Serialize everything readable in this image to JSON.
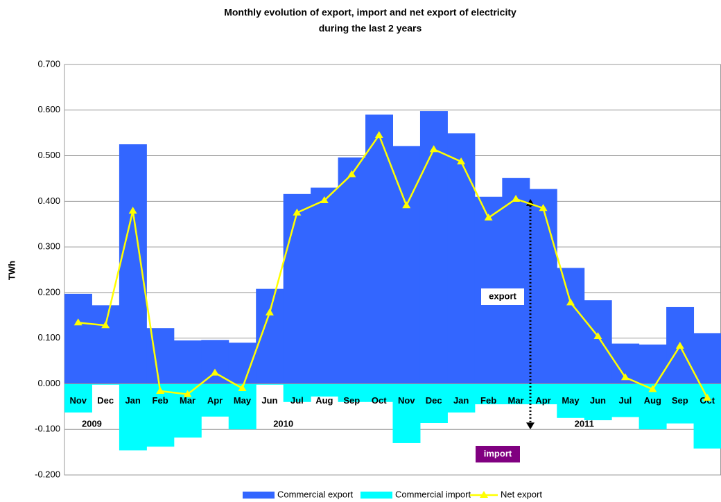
{
  "chart_data": {
    "type": "bar",
    "title": [
      "Monthly evolution of export, import and net export of electricity",
      "during the last 2 years"
    ],
    "y_label": "TWh",
    "categories": [
      "Nov",
      "Dec",
      "Jan",
      "Feb",
      "Mar",
      "Apr",
      "May",
      "Jun",
      "Jul",
      "Aug",
      "Sep",
      "Oct",
      "Nov",
      "Dec",
      "Jan",
      "Feb",
      "Mar",
      "Apr",
      "May",
      "Jun",
      "Jul",
      "Aug",
      "Sep",
      "Oct"
    ],
    "year_labels": [
      "2009",
      "2010",
      "2011"
    ],
    "annotations": [
      "export",
      "import"
    ],
    "series": [
      {
        "name": "Commercial export",
        "type": "bar",
        "color": "#3366ff",
        "values": [
          0.197,
          0.172,
          0.525,
          0.122,
          0.095,
          0.096,
          0.09,
          0.208,
          0.416,
          0.43,
          0.496,
          0.59,
          0.521,
          0.598,
          0.549,
          0.41,
          0.451,
          0.427,
          0.254,
          0.183,
          0.088,
          0.086,
          0.168,
          0.111
        ]
      },
      {
        "name": "Commercial import",
        "type": "bar",
        "color": "#00ffff",
        "values": [
          -0.063,
          -0.002,
          -0.146,
          -0.138,
          -0.118,
          -0.072,
          -0.1,
          -0.002,
          -0.04,
          -0.028,
          -0.04,
          -0.04,
          -0.13,
          -0.086,
          -0.063,
          -0.045,
          -0.045,
          -0.045,
          -0.075,
          -0.08,
          -0.073,
          -0.1,
          -0.087,
          -0.142
        ]
      },
      {
        "name": "Net export",
        "type": "line",
        "color": "#ffff00",
        "values": [
          0.134,
          0.128,
          0.379,
          -0.016,
          -0.023,
          0.024,
          -0.01,
          0.156,
          0.375,
          0.402,
          0.459,
          0.545,
          0.391,
          0.514,
          0.487,
          0.364,
          0.405,
          0.385,
          0.178,
          0.104,
          0.014,
          -0.012,
          0.083,
          -0.031
        ]
      }
    ],
    "ylim": [
      -0.2,
      0.7
    ],
    "yticks": [
      {
        "value": -0.2,
        "label": "-0.200"
      },
      {
        "value": -0.1,
        "label": "-0.100"
      },
      {
        "value": 0,
        "label": "0.000"
      },
      {
        "value": 0.1,
        "label": "0.100"
      },
      {
        "value": 0.2,
        "label": "0.200"
      },
      {
        "value": 0.3,
        "label": "0.300"
      },
      {
        "value": 0.4,
        "label": "0.400"
      },
      {
        "value": 0.5,
        "label": "0.500"
      },
      {
        "value": 0.6,
        "label": "0.600"
      },
      {
        "value": 0.7,
        "label": "0.700"
      }
    ],
    "grid": true
  }
}
